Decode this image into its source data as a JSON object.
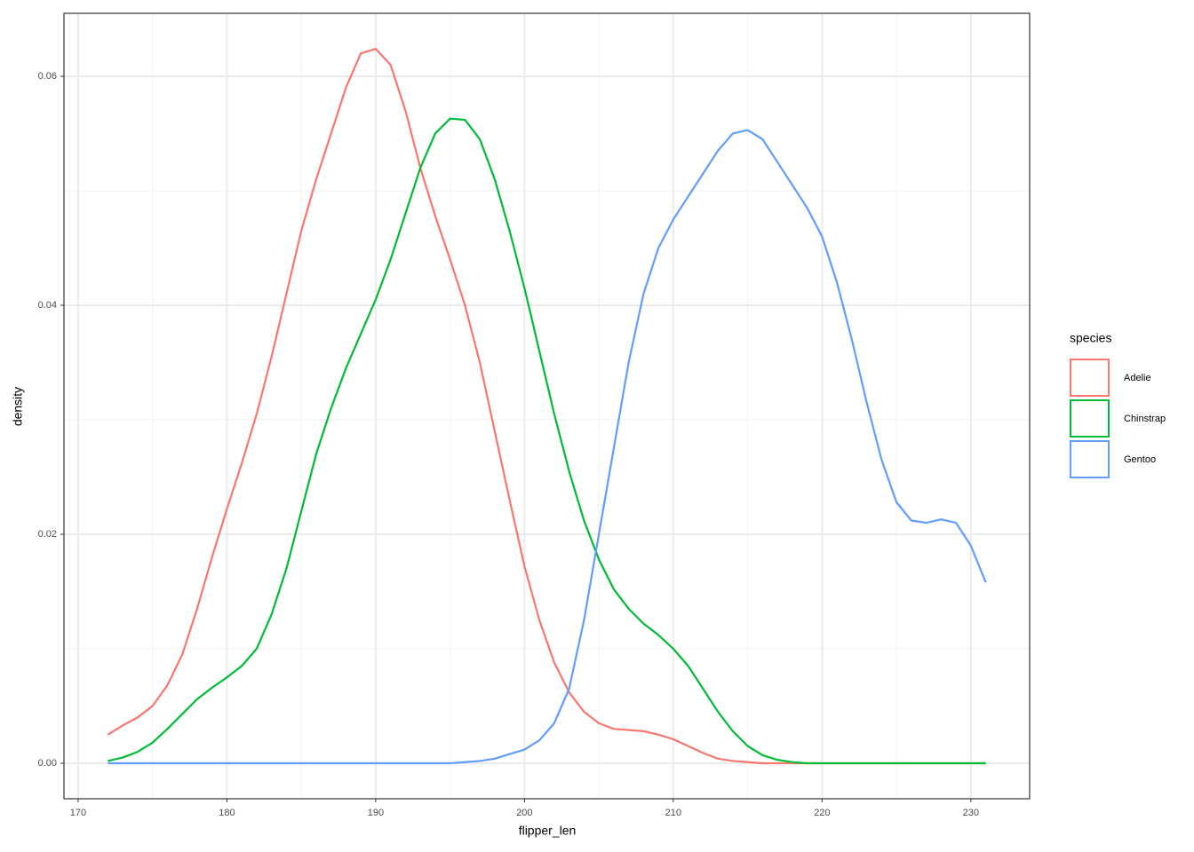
{
  "chart_data": {
    "type": "line",
    "x_label": "flipper_len",
    "y_label": "density",
    "legend_title": "species",
    "x": [
      172,
      173,
      174,
      175,
      176,
      177,
      178,
      179,
      180,
      181,
      182,
      183,
      184,
      185,
      186,
      187,
      188,
      189,
      190,
      191,
      192,
      193,
      194,
      195,
      196,
      197,
      198,
      199,
      200,
      201,
      202,
      203,
      204,
      205,
      206,
      207,
      208,
      209,
      210,
      211,
      212,
      213,
      214,
      215,
      216,
      217,
      218,
      219,
      220,
      221,
      222,
      223,
      224,
      225,
      226,
      227,
      228,
      229,
      230,
      231
    ],
    "series": [
      {
        "name": "Adelie",
        "color": "#f8766d",
        "values": [
          0.0025,
          0.0033,
          0.004,
          0.005,
          0.0068,
          0.0095,
          0.0135,
          0.018,
          0.0222,
          0.0262,
          0.0305,
          0.0355,
          0.041,
          0.0465,
          0.051,
          0.055,
          0.059,
          0.062,
          0.0624,
          0.061,
          0.057,
          0.052,
          0.0478,
          0.044,
          0.04,
          0.035,
          0.029,
          0.023,
          0.0172,
          0.0125,
          0.0088,
          0.0062,
          0.0045,
          0.0035,
          0.003,
          0.0029,
          0.0028,
          0.0025,
          0.0021,
          0.0015,
          0.0009,
          0.0004,
          0.0002,
          0.0001,
          0,
          0,
          0,
          0,
          0,
          0,
          0,
          0,
          0,
          0,
          0,
          0,
          0,
          0,
          0,
          0
        ]
      },
      {
        "name": "Chinstrap",
        "color": "#00ba38",
        "values": [
          0.0002,
          0.0005,
          0.001,
          0.0018,
          0.003,
          0.0043,
          0.0056,
          0.0066,
          0.0075,
          0.0085,
          0.01,
          0.013,
          0.017,
          0.022,
          0.027,
          0.031,
          0.0345,
          0.0375,
          0.0405,
          0.044,
          0.048,
          0.052,
          0.055,
          0.0563,
          0.0562,
          0.0545,
          0.051,
          0.0465,
          0.0415,
          0.036,
          0.0305,
          0.0255,
          0.0212,
          0.0178,
          0.0152,
          0.0135,
          0.0122,
          0.0112,
          0.01,
          0.0085,
          0.0065,
          0.0045,
          0.0028,
          0.0015,
          0.0007,
          0.0003,
          0.0001,
          0,
          0,
          0,
          0,
          0,
          0,
          0,
          0,
          0,
          0,
          0,
          0,
          0
        ]
      },
      {
        "name": "Gentoo",
        "color": "#619cff",
        "values": [
          0,
          0,
          0,
          0,
          0,
          0,
          0,
          0,
          0,
          0,
          0,
          0,
          0,
          0,
          0,
          0,
          0,
          0,
          0,
          0,
          0,
          0,
          0,
          0,
          0.0001,
          0.0002,
          0.0004,
          0.0008,
          0.0012,
          0.002,
          0.0035,
          0.0065,
          0.0125,
          0.02,
          0.0275,
          0.035,
          0.041,
          0.045,
          0.0475,
          0.0495,
          0.0515,
          0.0535,
          0.055,
          0.0553,
          0.0545,
          0.0525,
          0.0505,
          0.0485,
          0.046,
          0.042,
          0.037,
          0.0315,
          0.0265,
          0.0228,
          0.0212,
          0.021,
          0.0213,
          0.021,
          0.019,
          0.0158
        ]
      }
    ],
    "xlim": [
      169.05,
      233.95
    ],
    "xticks": [
      170,
      180,
      190,
      200,
      210,
      220,
      230
    ],
    "ylim": [
      -0.0031,
      0.0655
    ],
    "yticks": [
      {
        "value": 0,
        "label": "0.00"
      },
      0.02,
      0.04,
      0.06
    ],
    "grid": true,
    "legend": "right"
  }
}
